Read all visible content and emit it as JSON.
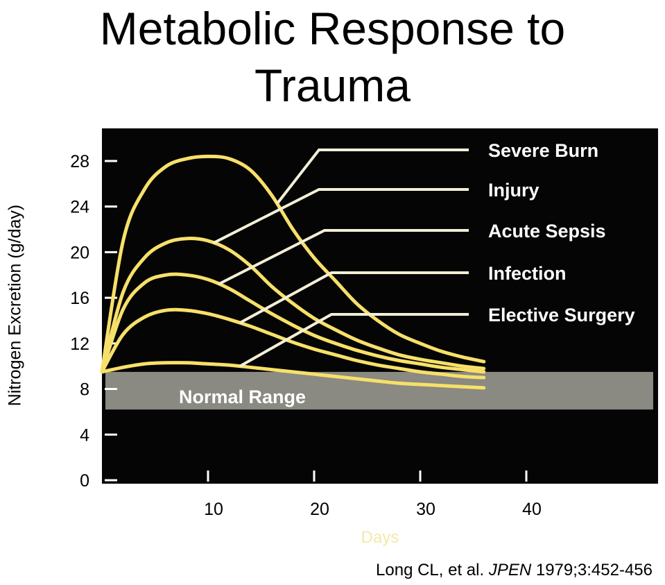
{
  "chart_data": {
    "type": "line",
    "title_lines": [
      "Metabolic Response to",
      "Trauma"
    ],
    "ylabel": "Nitrogen Excretion (g/day)",
    "xlabel": "Days",
    "ylim": [
      0,
      30
    ],
    "xlim": [
      0,
      52
    ],
    "yticks": [
      0,
      4,
      8,
      12,
      16,
      20,
      24,
      28
    ],
    "xticks": [
      10,
      20,
      30,
      40
    ],
    "grid": false,
    "legend_placement": "right, labels joined to curves by leader lines",
    "normal_range": {
      "label": "Normal Range",
      "y_min": 6.2,
      "y_max": 9.5
    },
    "series": [
      {
        "name": "Severe Burn",
        "x": [
          0,
          2,
          4,
          6,
          8,
          10,
          12,
          14,
          16,
          18,
          20,
          22,
          24,
          26,
          28,
          30,
          32,
          34,
          36
        ],
        "y": [
          9.5,
          21,
          25.5,
          27.5,
          28.2,
          28.4,
          28.2,
          27.2,
          25,
          22,
          19.5,
          17.5,
          15.5,
          14,
          12.8,
          12,
          11.3,
          10.8,
          10.4
        ],
        "leader_anchor_day": 16.5
      },
      {
        "name": "Injury",
        "x": [
          0,
          2,
          4,
          6,
          8,
          10,
          12,
          14,
          16,
          18,
          20,
          22,
          24,
          26,
          28,
          30,
          32,
          34,
          36
        ],
        "y": [
          9.5,
          16.5,
          19.5,
          20.8,
          21.2,
          21,
          20.2,
          18.8,
          17,
          15.5,
          14.2,
          13.2,
          12.3,
          11.6,
          11,
          10.6,
          10.3,
          10,
          9.8
        ],
        "leader_anchor_day": 10.5
      },
      {
        "name": "Acute Sepsis",
        "x": [
          0,
          2,
          4,
          6,
          8,
          10,
          12,
          14,
          16,
          18,
          20,
          22,
          24,
          26,
          28,
          30,
          32,
          34,
          36
        ],
        "y": [
          9.5,
          15,
          17.3,
          18,
          18,
          17.6,
          16.8,
          15.7,
          14.6,
          13.6,
          12.7,
          12,
          11.4,
          10.9,
          10.5,
          10.2,
          9.9,
          9.7,
          9.5
        ],
        "leader_anchor_day": 11
      },
      {
        "name": "Infection",
        "x": [
          0,
          2,
          4,
          6,
          8,
          10,
          12,
          14,
          16,
          18,
          20,
          22,
          24,
          26,
          28,
          30,
          32,
          34,
          36
        ],
        "y": [
          9.5,
          12.8,
          14.3,
          14.9,
          14.9,
          14.6,
          14.1,
          13.5,
          12.8,
          12.1,
          11.5,
          11,
          10.5,
          10.1,
          9.8,
          9.5,
          9.3,
          9.1,
          9
        ],
        "leader_anchor_day": 13
      },
      {
        "name": "Elective Surgery",
        "x": [
          0,
          2,
          4,
          6,
          8,
          10,
          12,
          14,
          16,
          18,
          20,
          22,
          24,
          26,
          28,
          30,
          32,
          34,
          36
        ],
        "y": [
          9.5,
          9.9,
          10.2,
          10.3,
          10.3,
          10.2,
          10.1,
          9.9,
          9.7,
          9.5,
          9.3,
          9.1,
          8.9,
          8.7,
          8.5,
          8.4,
          8.3,
          8.2,
          8.1
        ],
        "leader_anchor_day": 13
      }
    ],
    "colors": {
      "plot_background": "#050505",
      "curve": "#f7e06a",
      "leader": "#f3efd6",
      "band": "#8a8982",
      "tick": "#ffffff"
    }
  },
  "citation": {
    "authors": "Long CL, et al. ",
    "journal": "JPEN",
    "ref": " 1979;3:452-456"
  }
}
